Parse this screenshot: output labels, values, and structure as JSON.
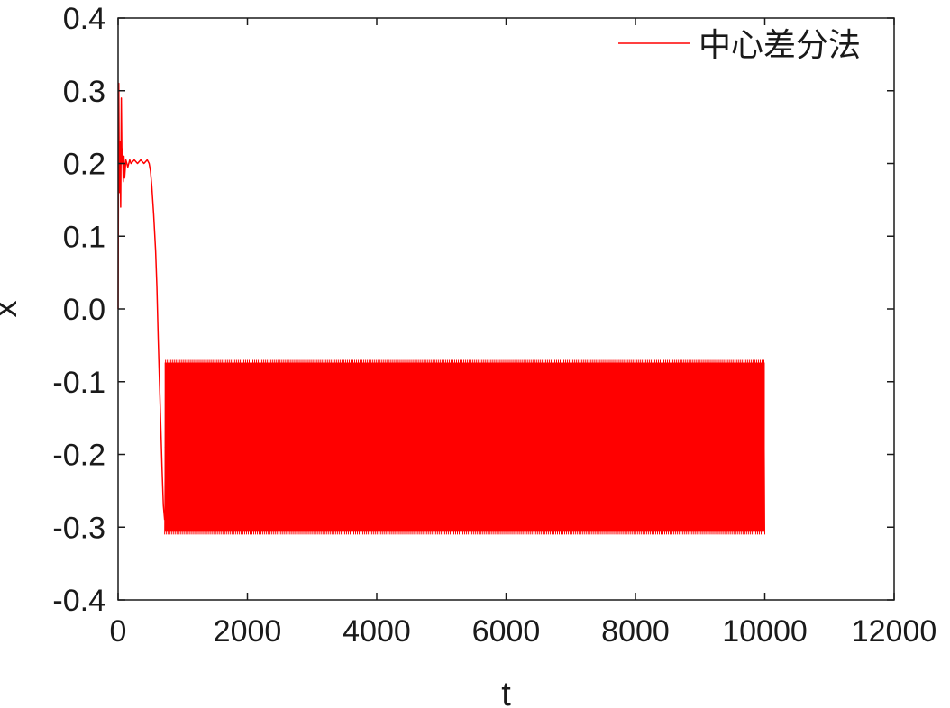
{
  "chart_data": {
    "type": "line",
    "title": "",
    "xlabel": "t",
    "ylabel": "x",
    "xlim": [
      0,
      12000
    ],
    "ylim": [
      -0.4,
      0.4
    ],
    "x_ticks": [
      "0",
      "2000",
      "4000",
      "6000",
      "8000",
      "10000",
      "12000"
    ],
    "y_ticks": [
      "0.4",
      "0.3",
      "0.2",
      "0.1",
      "0.0",
      "-0.1",
      "-0.2",
      "-0.3",
      "-0.4"
    ],
    "grid": false,
    "legend_position": "top-right",
    "series": [
      {
        "name": "中心差分法",
        "color": "#ff0000",
        "x": [
          0,
          10,
          20,
          30,
          40,
          50,
          60,
          70,
          80,
          90,
          100,
          120,
          150,
          180,
          200,
          250,
          300,
          350,
          400,
          450,
          480,
          500,
          520,
          550,
          580,
          600,
          620,
          640,
          660,
          680,
          700,
          720,
          750,
          800,
          900,
          1000,
          2000,
          4000,
          6000,
          8000,
          10000
        ],
        "y": [
          0.0,
          0.31,
          0.16,
          0.23,
          0.14,
          0.29,
          0.2,
          0.22,
          0.175,
          0.21,
          0.18,
          0.205,
          0.195,
          0.205,
          0.2,
          0.205,
          0.2,
          0.205,
          0.2,
          0.205,
          0.2,
          0.19,
          0.17,
          0.13,
          0.08,
          0.03,
          -0.04,
          -0.1,
          -0.16,
          -0.22,
          -0.27,
          -0.29,
          -0.305,
          -0.31,
          -0.31,
          -0.31,
          -0.31,
          -0.31,
          -0.31,
          -0.31,
          -0.31
        ],
        "envelope": {
          "x_start": 720,
          "x_end": 10000,
          "upper": -0.07,
          "lower": -0.31,
          "mean": -0.19
        }
      }
    ]
  }
}
